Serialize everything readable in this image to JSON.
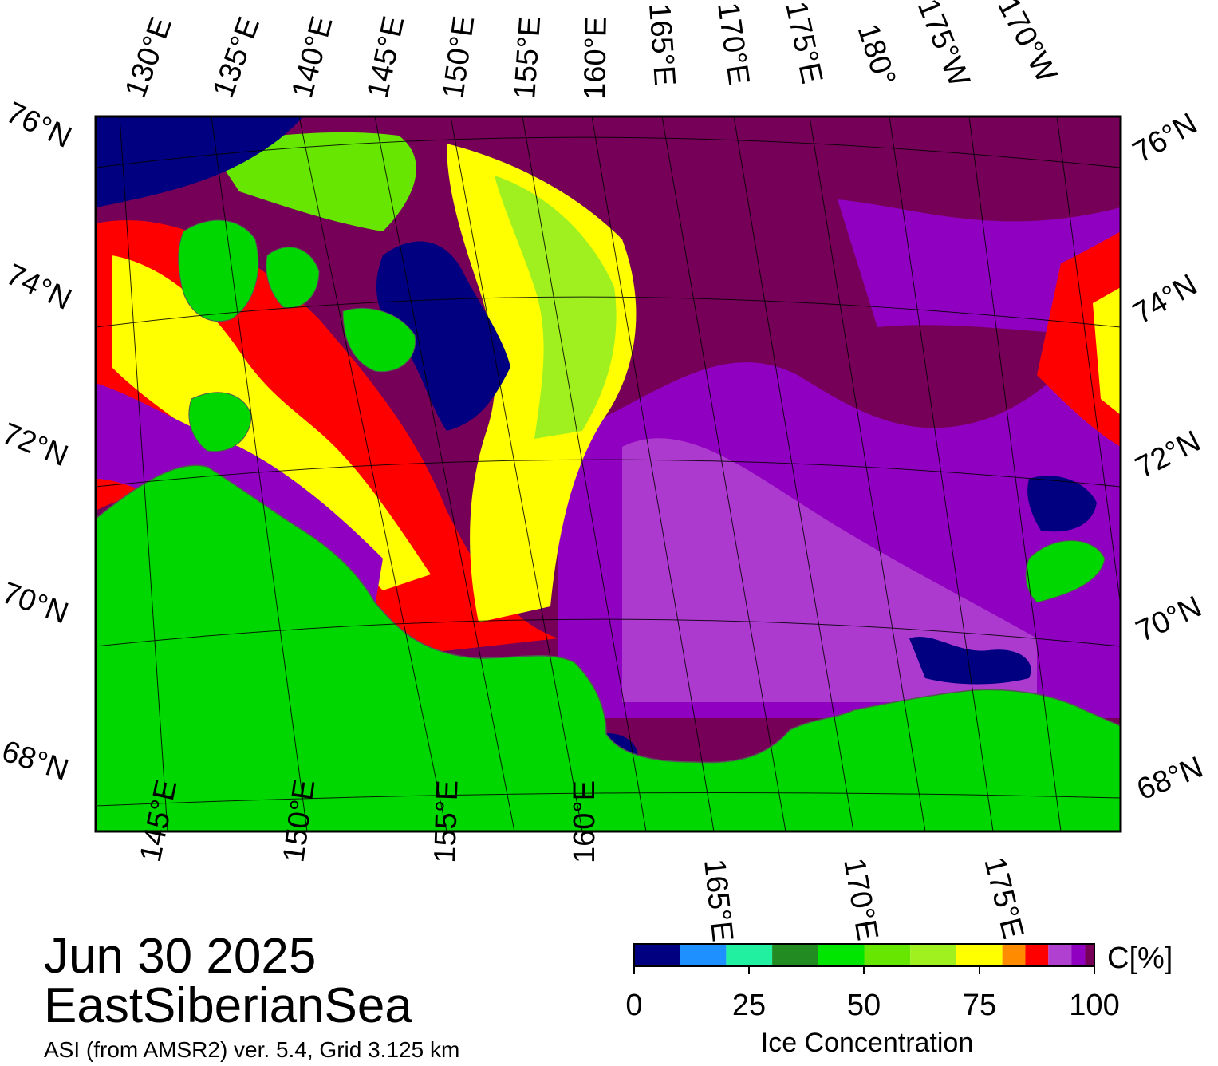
{
  "map": {
    "date": "Jun 30 2025",
    "region": "EastSiberianSea",
    "product": "ASI (from AMSR2) ver. 5.4,  Grid 3.125 km",
    "land_color": "#00d600",
    "open_water_color": "#000080",
    "top_lon_labels": [
      "130°E",
      "135°E",
      "140°E",
      "145°E",
      "150°E",
      "155°E",
      "160°E",
      "165°E",
      "170°E",
      "175°E",
      "180°",
      "175°W",
      "170°W"
    ],
    "bottom_lon_labels": [
      "145°E",
      "150°E",
      "155°E",
      "160°E",
      "165°E",
      "170°E",
      "175°E"
    ],
    "left_lat_labels": [
      "76°N",
      "74°N",
      "72°N",
      "70°N",
      "68°N"
    ],
    "right_lat_labels": [
      "76°N",
      "74°N",
      "72°N",
      "70°N",
      "68°N"
    ]
  },
  "colorbar": {
    "title": "Ice Concentration",
    "unit": "C[%]",
    "ticks": [
      "0",
      "25",
      "50",
      "75",
      "100"
    ],
    "colors": [
      "#000080",
      "#1e90ff",
      "#20f0a0",
      "#228b22",
      "#00e600",
      "#66e600",
      "#a0f020",
      "#ffff00",
      "#ff8c00",
      "#ff0000",
      "#b040d0",
      "#9000c0",
      "#760058"
    ]
  },
  "icons": [
    "map-frame",
    "colorbar"
  ]
}
